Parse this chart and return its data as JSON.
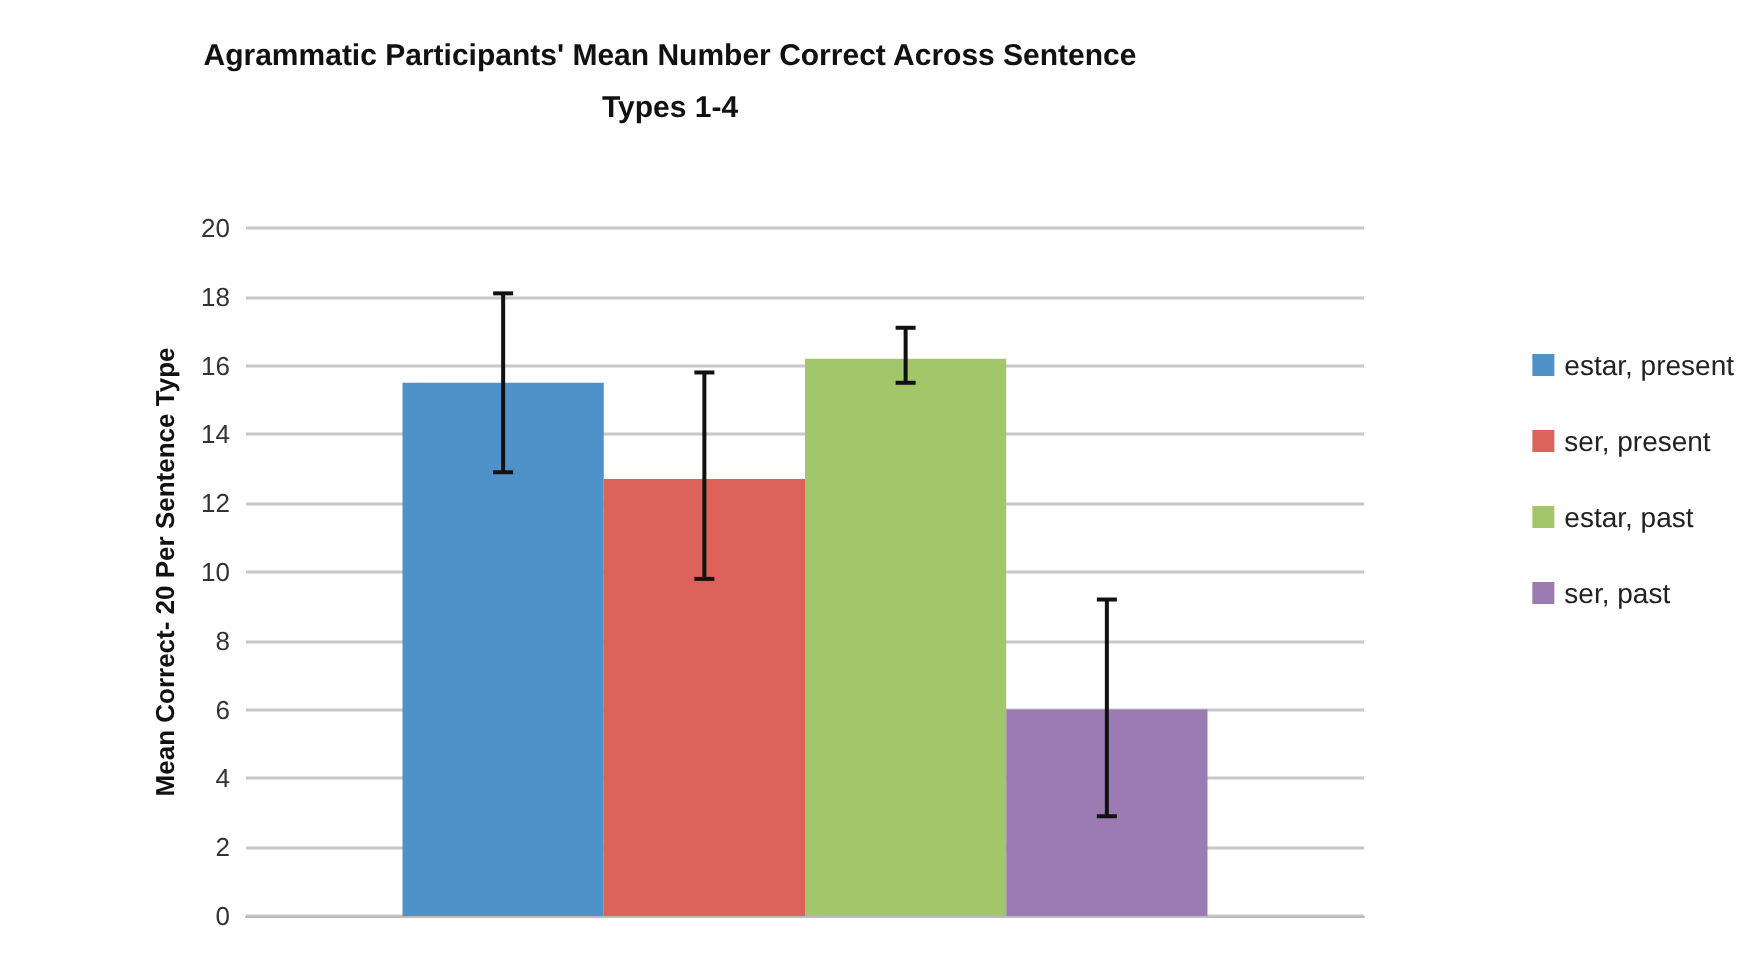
{
  "chart_data": {
    "type": "bar",
    "title": "Agrammatic Participants' Mean Number Correct Across Sentence\nTypes 1-4",
    "ylabel": "Mean Correct- 20 Per Sentence Type",
    "categories": [
      null
    ],
    "series": [
      {
        "name": "estar, present",
        "color": "#4f91c9",
        "values": [
          15.5
        ],
        "errors": [
          [
            12.9,
            18.1
          ]
        ]
      },
      {
        "name": "ser, present",
        "color": "#dd635a",
        "values": [
          12.7
        ],
        "errors": [
          [
            9.8,
            15.8
          ]
        ]
      },
      {
        "name": "estar, past",
        "color": "#a2c66a",
        "values": [
          16.2
        ],
        "errors": [
          [
            15.5,
            17.1
          ]
        ]
      },
      {
        "name": "ser, past",
        "color": "#9b7bb2",
        "values": [
          6.0
        ],
        "errors": [
          [
            2.9,
            9.2
          ]
        ]
      }
    ],
    "ylim": [
      0,
      20
    ],
    "yticks": [
      0,
      2,
      4,
      6,
      8,
      10,
      12,
      14,
      16,
      18,
      20
    ],
    "grid": "y",
    "legend": "right"
  }
}
